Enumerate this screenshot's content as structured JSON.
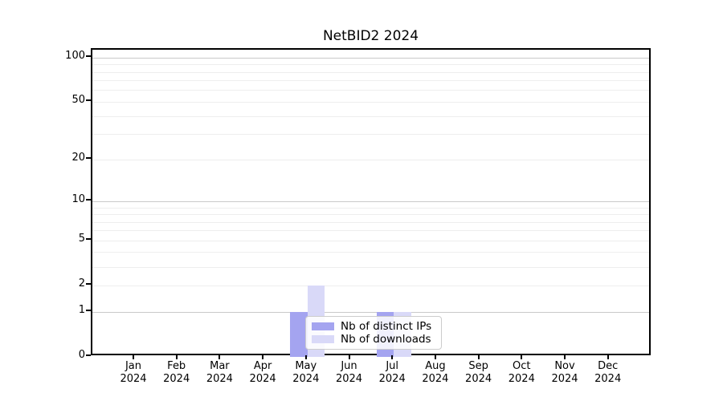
{
  "title": "NetBID2 2024",
  "legend": {
    "items": [
      {
        "label": "Nb of distinct IPs",
        "color": "#a4a4f0"
      },
      {
        "label": "Nb of downloads",
        "color": "#d9d9f8"
      }
    ]
  },
  "chart_data": {
    "type": "bar",
    "title": "NetBID2 2024",
    "categories": [
      "Jan 2024",
      "Feb 2024",
      "Mar 2024",
      "Apr 2024",
      "May 2024",
      "Jun 2024",
      "Jul 2024",
      "Aug 2024",
      "Sep 2024",
      "Oct 2024",
      "Nov 2024",
      "Dec 2024"
    ],
    "series": [
      {
        "name": "Nb of distinct IPs",
        "color": "#a4a4f0",
        "values": [
          0,
          0,
          0,
          0,
          1,
          0,
          1,
          0,
          0,
          0,
          0,
          0
        ]
      },
      {
        "name": "Nb of downloads",
        "color": "#d9d9f8",
        "values": [
          0,
          0,
          0,
          0,
          2,
          0,
          1,
          0,
          0,
          0,
          0,
          0
        ]
      }
    ],
    "xlabel": "",
    "ylabel": "",
    "yscale": "log1p",
    "ylim": [
      0,
      110
    ],
    "ytick_values": [
      0,
      1,
      2,
      5,
      10,
      20,
      50,
      100
    ],
    "grid": "horizontal",
    "legend_position": "lower-center-inside"
  }
}
